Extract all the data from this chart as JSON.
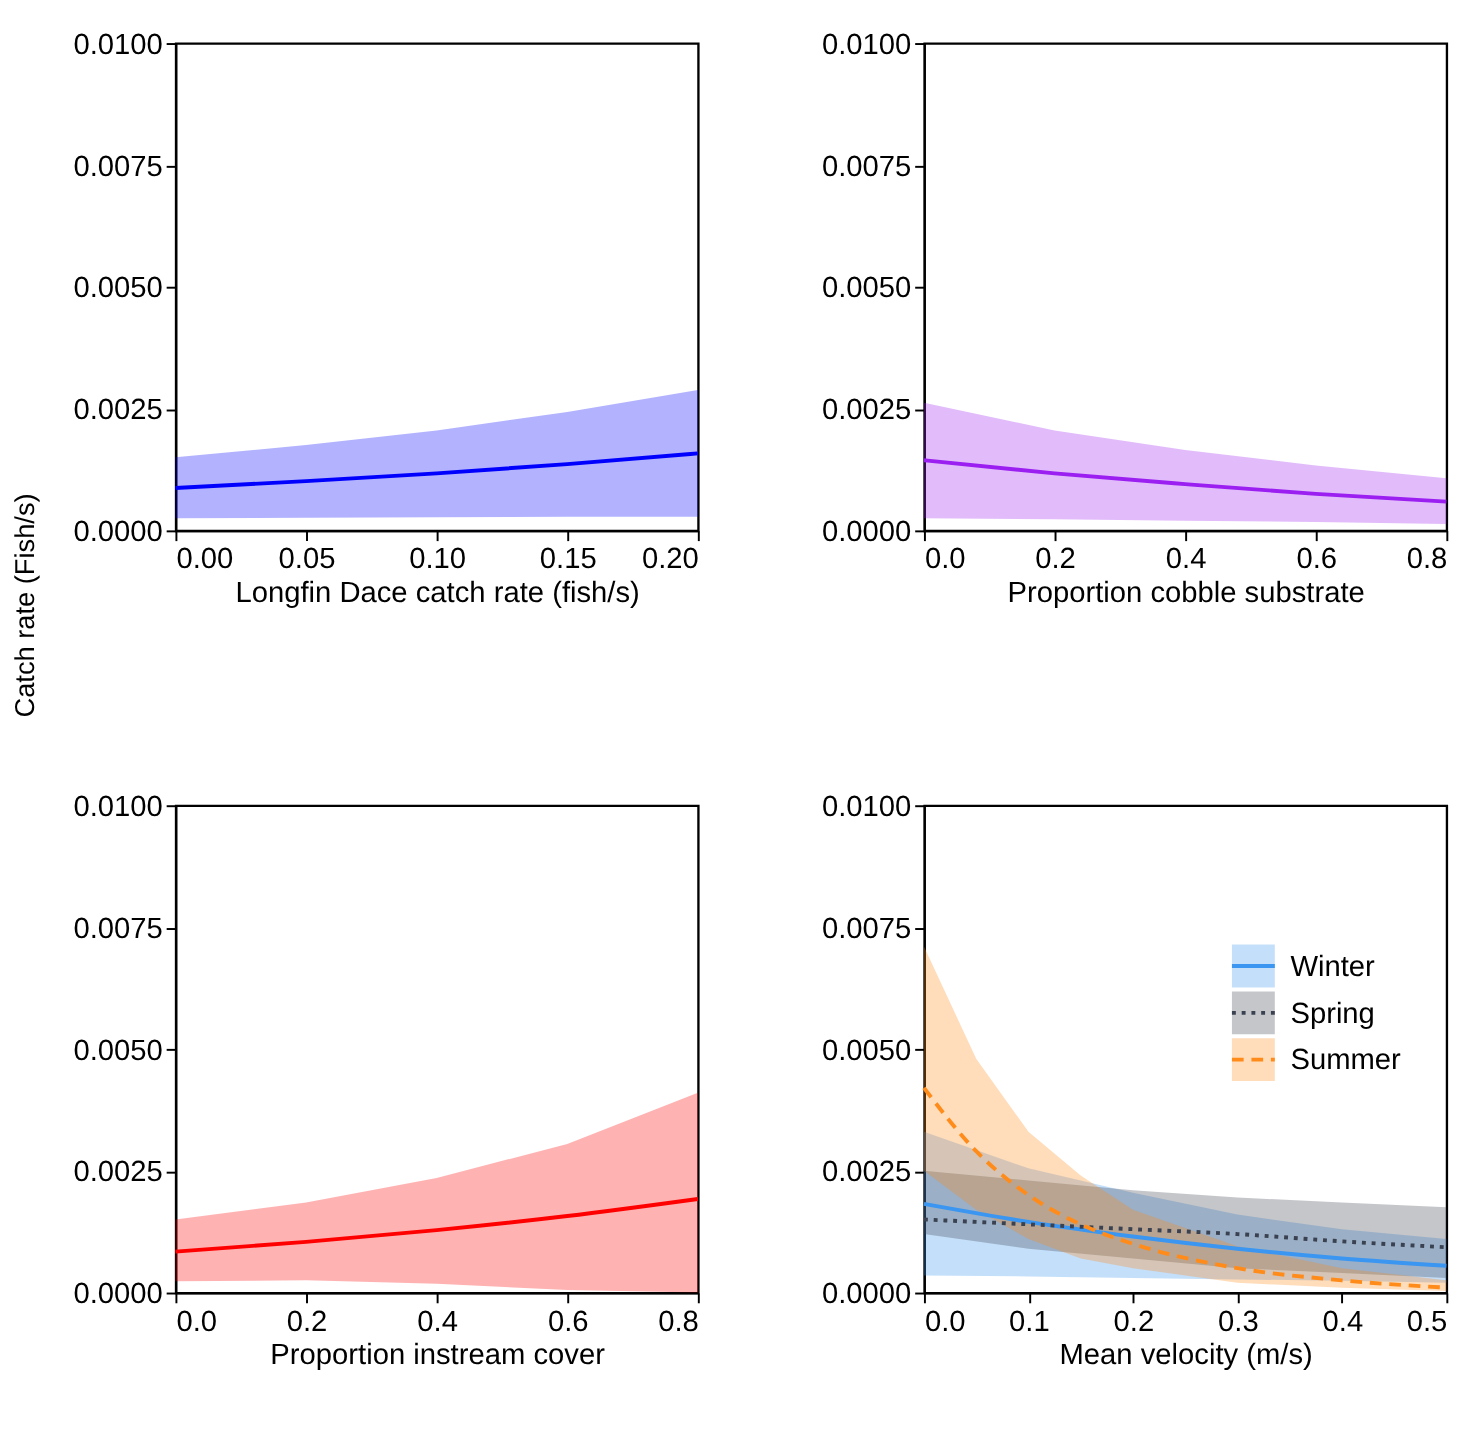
{
  "chart_data": [
    {
      "type": "line",
      "xlabel": "Longfin Dace catch rate (fish/s)",
      "ylabel": "Catch rate (Fish/s)",
      "xlim": [
        0,
        0.2
      ],
      "xticks": [
        {
          "value": 0,
          "label": "0.00"
        },
        {
          "value": 0.05,
          "label": "0.05"
        },
        {
          "value": 0.1,
          "label": "0.10"
        },
        {
          "value": 0.15,
          "label": "0.15"
        },
        {
          "value": 0.2,
          "label": "0.20"
        }
      ],
      "ylim": [
        0,
        0.01
      ],
      "yticks": [
        {
          "value": 0,
          "label": "0.0000"
        },
        {
          "value": 0.0025,
          "label": "0.0025"
        },
        {
          "value": 0.005,
          "label": "0.0050"
        },
        {
          "value": 0.0075,
          "label": "0.0075"
        },
        {
          "value": 0.01,
          "label": "0.0100"
        }
      ],
      "series": [
        {
          "color": "#0000ff",
          "line_style": "solid",
          "x": [
            0,
            0.05,
            0.1,
            0.15,
            0.2
          ],
          "values": [
            0.00087,
            0.00101,
            0.00117,
            0.00136,
            0.00158
          ],
          "lower": [
            0.00025,
            0.00026,
            0.00027,
            0.00028,
            0.00028
          ],
          "upper": [
            0.0015,
            0.00175,
            0.00205,
            0.00243,
            0.00288
          ]
        }
      ]
    },
    {
      "type": "line",
      "xlabel": "Proportion cobble substrate",
      "xlim": [
        0,
        0.8
      ],
      "xticks": [
        {
          "value": 0,
          "label": "0.0"
        },
        {
          "value": 0.2,
          "label": "0.2"
        },
        {
          "value": 0.4,
          "label": "0.4"
        },
        {
          "value": 0.6,
          "label": "0.6"
        },
        {
          "value": 0.8,
          "label": "0.8"
        }
      ],
      "ylim": [
        0,
        0.01
      ],
      "yticks": [
        {
          "value": 0,
          "label": "0.0000"
        },
        {
          "value": 0.0025,
          "label": "0.0025"
        },
        {
          "value": 0.005,
          "label": "0.0050"
        },
        {
          "value": 0.0075,
          "label": "0.0075"
        },
        {
          "value": 0.01,
          "label": "0.0100"
        }
      ],
      "series": [
        {
          "color": "#9a1ff0",
          "line_style": "solid",
          "x": [
            0,
            0.2,
            0.4,
            0.6,
            0.8
          ],
          "values": [
            0.00144,
            0.00117,
            0.00095,
            0.00075,
            0.00059
          ],
          "lower": [
            0.00025,
            0.00023,
            0.0002,
            0.00017,
            0.00013
          ],
          "upper": [
            0.00262,
            0.00205,
            0.00165,
            0.00133,
            0.00107
          ]
        }
      ]
    },
    {
      "type": "line",
      "xlabel": "Proportion instream cover",
      "xlim": [
        0,
        0.8
      ],
      "xticks": [
        {
          "value": 0,
          "label": "0.0"
        },
        {
          "value": 0.2,
          "label": "0.2"
        },
        {
          "value": 0.4,
          "label": "0.4"
        },
        {
          "value": 0.6,
          "label": "0.6"
        },
        {
          "value": 0.8,
          "label": "0.8"
        }
      ],
      "ylim": [
        0,
        0.01
      ],
      "yticks": [
        {
          "value": 0,
          "label": "0.0000"
        },
        {
          "value": 0.0025,
          "label": "0.0025"
        },
        {
          "value": 0.005,
          "label": "0.0050"
        },
        {
          "value": 0.0075,
          "label": "0.0075"
        },
        {
          "value": 0.01,
          "label": "0.0100"
        }
      ],
      "series": [
        {
          "color": "#ff0000",
          "line_style": "solid",
          "x": [
            0,
            0.2,
            0.4,
            0.6,
            0.8
          ],
          "values": [
            0.00084,
            0.00104,
            0.00128,
            0.00157,
            0.00192
          ],
          "lower": [
            0.00023,
            0.00025,
            0.00018,
            5e-05,
            0.0
          ],
          "upper": [
            0.0015,
            0.00185,
            0.00235,
            0.00305,
            0.0041
          ]
        }
      ]
    },
    {
      "type": "line",
      "xlabel": "Mean velocity (m/s)",
      "legend": "right",
      "xlim": [
        0,
        0.5
      ],
      "xticks": [
        {
          "value": 0,
          "label": "0.0"
        },
        {
          "value": 0.1,
          "label": "0.1"
        },
        {
          "value": 0.2,
          "label": "0.2"
        },
        {
          "value": 0.3,
          "label": "0.3"
        },
        {
          "value": 0.4,
          "label": "0.4"
        },
        {
          "value": 0.5,
          "label": "0.5"
        }
      ],
      "ylim": [
        0,
        0.01
      ],
      "yticks": [
        {
          "value": 0,
          "label": "0.0000"
        },
        {
          "value": 0.0025,
          "label": "0.0025"
        },
        {
          "value": 0.005,
          "label": "0.0050"
        },
        {
          "value": 0.0075,
          "label": "0.0075"
        },
        {
          "value": 0.01,
          "label": "0.0100"
        }
      ],
      "series": [
        {
          "name": "Winter",
          "color": "#3a96f0",
          "line_style": "solid",
          "x": [
            0,
            0.1,
            0.2,
            0.3,
            0.4,
            0.5
          ],
          "values": [
            0.00182,
            0.00145,
            0.00115,
            0.0009,
            0.0007,
            0.00055
          ],
          "lower": [
            0.00035,
            0.00033,
            0.0003,
            0.00027,
            0.00024,
            0.0002
          ],
          "upper": [
            0.0033,
            0.00255,
            0.00205,
            0.0016,
            0.0013,
            0.0011
          ]
        },
        {
          "name": "Spring",
          "color": "#3a4150",
          "line_style": "dotted",
          "x": [
            0,
            0.1,
            0.2,
            0.3,
            0.4,
            0.5
          ],
          "values": [
            0.0015,
            0.0014,
            0.0013,
            0.0012,
            0.00105,
            0.00093
          ],
          "lower": [
            0.0012,
            0.0009,
            0.0007,
            0.0005,
            0.0004,
            0.0003
          ],
          "upper": [
            0.0025,
            0.0023,
            0.0021,
            0.00195,
            0.00185,
            0.00175
          ]
        },
        {
          "name": "Summer",
          "color": "#ff8c1a",
          "line_style": "dashed",
          "x": [
            0,
            0.05,
            0.1,
            0.15,
            0.2,
            0.3,
            0.4,
            0.5
          ],
          "values": [
            0.0042,
            0.0029,
            0.002,
            0.0014,
            0.001,
            0.0005,
            0.00025,
            0.0001
          ],
          "lower": [
            0.0025,
            0.0017,
            0.0011,
            0.0007,
            0.0005,
            0.0002,
            0.0001,
            3e-05
          ],
          "upper": [
            0.0071,
            0.0048,
            0.0033,
            0.0024,
            0.0017,
            0.00095,
            0.0005,
            0.00025
          ]
        }
      ]
    }
  ]
}
